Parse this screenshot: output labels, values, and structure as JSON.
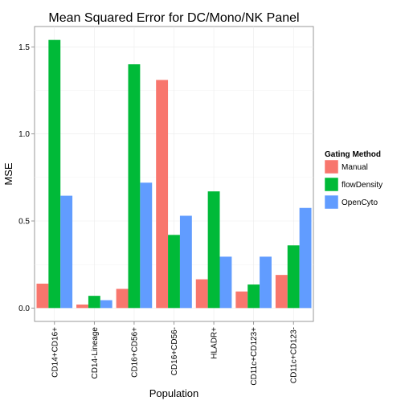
{
  "chart_data": {
    "type": "bar",
    "title": "Mean Squared Error for DC/Mono/NK Panel",
    "xlabel": "Population",
    "ylabel": "MSE",
    "categories": [
      "CD14+CD16+",
      "CD14-Lineage",
      "CD16+CD56+",
      "CD16+CD56-",
      "HLADR+",
      "CD11c+CD123+",
      "CD11c+CD123-"
    ],
    "series": [
      {
        "name": "Manual",
        "color": "#F8766D",
        "values": [
          0.14,
          0.02,
          0.11,
          1.31,
          0.165,
          0.095,
          0.19
        ]
      },
      {
        "name": "flowDensity",
        "color": "#00BA38",
        "values": [
          1.54,
          0.07,
          1.4,
          0.42,
          0.67,
          0.135,
          0.36
        ]
      },
      {
        "name": "OpenCyto",
        "color": "#619CFF",
        "values": [
          0.645,
          0.045,
          0.72,
          0.53,
          0.295,
          0.295,
          0.575
        ]
      }
    ],
    "yticks": [
      0.0,
      0.5,
      1.0,
      1.5
    ],
    "ytick_labels": [
      "0.0",
      "0.5",
      "1.0",
      "1.5"
    ],
    "ylim": [
      -0.077,
      1.617
    ],
    "grid": true,
    "legend": {
      "title": "Gating Method",
      "position": "right"
    }
  }
}
